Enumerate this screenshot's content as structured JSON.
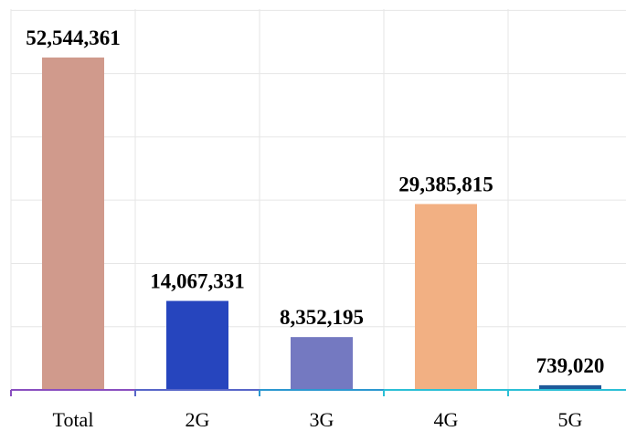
{
  "chart_data": {
    "type": "bar",
    "categories": [
      "Total",
      "2G",
      "3G",
      "4G",
      "5G"
    ],
    "values": [
      52544361,
      14067331,
      8352195,
      29385815,
      739020
    ],
    "data_labels": [
      "52,544,361",
      "14,067,331",
      "8,352,195",
      "29,385,815",
      "739,020"
    ],
    "colors": [
      "#D09A8C",
      "#2645BE",
      "#7479C1",
      "#F2B083",
      "#1E5A9A"
    ],
    "axis_colors": [
      "#8A4FC0",
      "#5866C8",
      "#2C98D0",
      "#2BC0D6"
    ],
    "title": "",
    "xlabel": "",
    "ylabel": "",
    "ylim": [
      0,
      60000000
    ],
    "grid": true,
    "legend": "none"
  }
}
